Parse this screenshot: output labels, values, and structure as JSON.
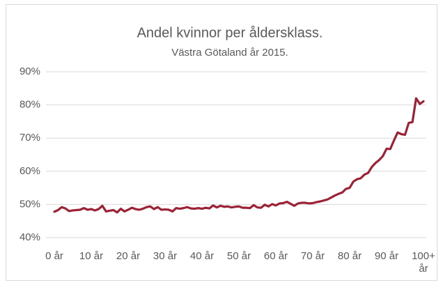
{
  "chart_data": {
    "type": "line",
    "title": "Andel kvinnor per åldersklass.",
    "subtitle": "Västra Götaland år 2015.",
    "categories": [
      "0 år",
      null,
      null,
      null,
      null,
      null,
      null,
      null,
      null,
      null,
      "10 år",
      null,
      null,
      null,
      null,
      null,
      null,
      null,
      null,
      null,
      "20 år",
      null,
      null,
      null,
      null,
      null,
      null,
      null,
      null,
      null,
      "30 år",
      null,
      null,
      null,
      null,
      null,
      null,
      null,
      null,
      null,
      "40 år",
      null,
      null,
      null,
      null,
      null,
      null,
      null,
      null,
      null,
      "50 år",
      null,
      null,
      null,
      null,
      null,
      null,
      null,
      null,
      null,
      "60 år",
      null,
      null,
      null,
      null,
      null,
      null,
      null,
      null,
      null,
      "70 år",
      null,
      null,
      null,
      null,
      null,
      null,
      null,
      null,
      null,
      "80 år",
      null,
      null,
      null,
      null,
      null,
      null,
      null,
      null,
      null,
      "90 år",
      null,
      null,
      null,
      null,
      null,
      null,
      null,
      null,
      null,
      "100+ år"
    ],
    "values": [
      47.8,
      48.3,
      49.2,
      48.8,
      48.0,
      48.2,
      48.3,
      48.4,
      48.9,
      48.4,
      48.6,
      48.2,
      48.6,
      49.6,
      47.9,
      48.1,
      48.3,
      47.6,
      48.7,
      47.9,
      48.4,
      49.0,
      48.6,
      48.4,
      48.7,
      49.2,
      49.4,
      48.6,
      49.2,
      48.4,
      48.5,
      48.4,
      47.9,
      48.9,
      48.7,
      48.9,
      49.2,
      48.8,
      48.7,
      48.9,
      48.7,
      49.0,
      48.8,
      49.7,
      49.1,
      49.6,
      49.3,
      49.4,
      49.1,
      49.3,
      49.4,
      49.0,
      49.0,
      48.9,
      49.8,
      49.1,
      49.0,
      49.9,
      49.4,
      50.1,
      49.7,
      50.3,
      50.4,
      50.8,
      50.2,
      49.6,
      50.3,
      50.5,
      50.5,
      50.3,
      50.4,
      50.7,
      50.9,
      51.2,
      51.5,
      52.1,
      52.7,
      53.2,
      53.6,
      54.7,
      55.0,
      56.9,
      57.6,
      57.9,
      59.0,
      59.5,
      61.3,
      62.5,
      63.4,
      64.6,
      66.8,
      66.7,
      69.3,
      71.7,
      71.2,
      71.0,
      74.6,
      74.8,
      82.0,
      80.3,
      81.1
    ],
    "color": "#9b2335",
    "ylim": [
      40,
      90
    ],
    "yticks": [
      {
        "value": 40,
        "label": "40%"
      },
      {
        "value": 50,
        "label": "50%"
      },
      {
        "value": 60,
        "label": "60%"
      },
      {
        "value": 70,
        "label": "70%"
      },
      {
        "value": 80,
        "label": "80%"
      },
      {
        "value": 90,
        "label": "90%"
      }
    ],
    "grid": true
  }
}
